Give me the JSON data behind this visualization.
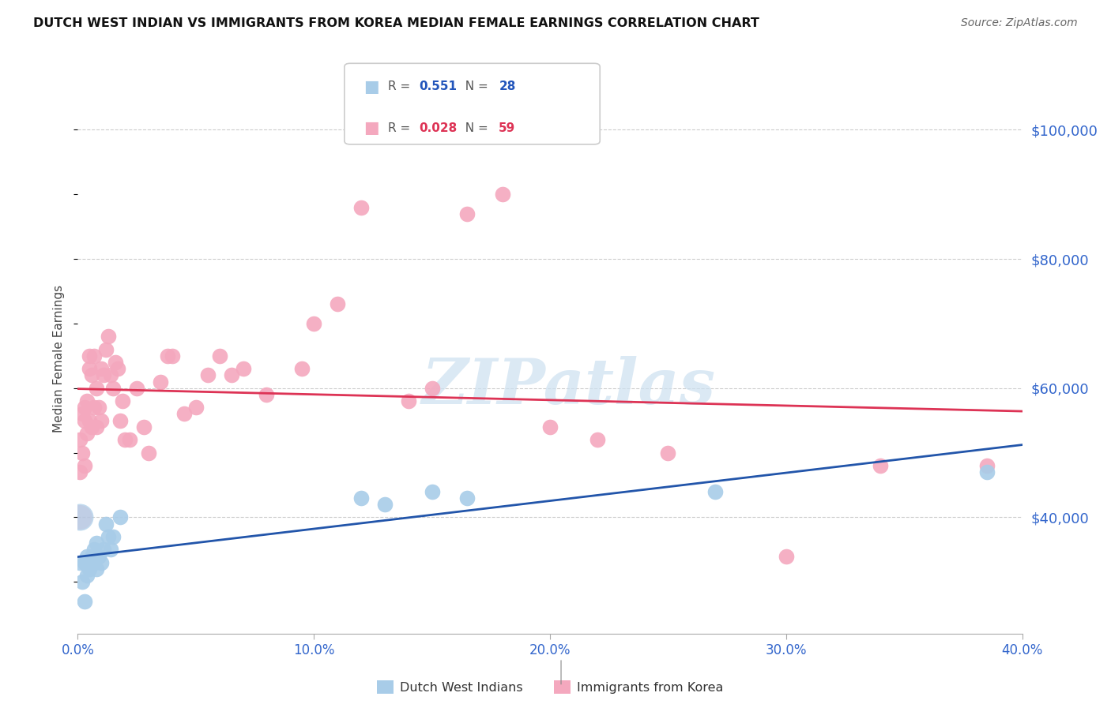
{
  "title": "DUTCH WEST INDIAN VS IMMIGRANTS FROM KOREA MEDIAN FEMALE EARNINGS CORRELATION CHART",
  "source": "Source: ZipAtlas.com",
  "ylabel": "Median Female Earnings",
  "xlim": [
    0.0,
    0.4
  ],
  "ylim": [
    22000,
    107000
  ],
  "yticks": [
    40000,
    60000,
    80000,
    100000
  ],
  "ytick_labels": [
    "$40,000",
    "$60,000",
    "$80,000",
    "$100,000"
  ],
  "xticks": [
    0.0,
    0.1,
    0.2,
    0.3,
    0.4
  ],
  "xtick_labels": [
    "0.0%",
    "10.0%",
    "20.0%",
    "30.0%",
    "40.0%"
  ],
  "blue_R": 0.551,
  "blue_N": 28,
  "pink_R": 0.028,
  "pink_N": 59,
  "blue_color": "#a8cce8",
  "pink_color": "#f4a8be",
  "blue_line_color": "#2255aa",
  "pink_line_color": "#dd3355",
  "watermark_color": "#cce0f0",
  "blue_scatter_x": [
    0.001,
    0.002,
    0.003,
    0.003,
    0.004,
    0.004,
    0.005,
    0.005,
    0.006,
    0.006,
    0.007,
    0.007,
    0.008,
    0.008,
    0.009,
    0.01,
    0.011,
    0.012,
    0.013,
    0.014,
    0.015,
    0.018,
    0.12,
    0.13,
    0.15,
    0.165,
    0.27,
    0.385
  ],
  "blue_scatter_y": [
    33000,
    30000,
    27000,
    33000,
    31000,
    34000,
    32000,
    33000,
    34000,
    33000,
    33000,
    35000,
    32000,
    36000,
    34000,
    33000,
    35000,
    39000,
    37000,
    35000,
    37000,
    40000,
    43000,
    42000,
    44000,
    43000,
    44000,
    47000
  ],
  "pink_scatter_x": [
    0.001,
    0.001,
    0.002,
    0.002,
    0.003,
    0.003,
    0.003,
    0.004,
    0.004,
    0.005,
    0.005,
    0.005,
    0.006,
    0.006,
    0.007,
    0.007,
    0.008,
    0.008,
    0.009,
    0.01,
    0.01,
    0.011,
    0.012,
    0.013,
    0.014,
    0.015,
    0.016,
    0.017,
    0.018,
    0.019,
    0.02,
    0.022,
    0.025,
    0.028,
    0.03,
    0.035,
    0.038,
    0.04,
    0.045,
    0.05,
    0.055,
    0.06,
    0.065,
    0.07,
    0.08,
    0.095,
    0.1,
    0.11,
    0.12,
    0.14,
    0.15,
    0.165,
    0.18,
    0.2,
    0.22,
    0.25,
    0.3,
    0.34,
    0.385
  ],
  "pink_scatter_y": [
    47000,
    52000,
    50000,
    56000,
    55000,
    57000,
    48000,
    53000,
    58000,
    55000,
    65000,
    63000,
    62000,
    54000,
    65000,
    57000,
    60000,
    54000,
    57000,
    55000,
    63000,
    62000,
    66000,
    68000,
    62000,
    60000,
    64000,
    63000,
    55000,
    58000,
    52000,
    52000,
    60000,
    54000,
    50000,
    61000,
    65000,
    65000,
    56000,
    57000,
    62000,
    65000,
    62000,
    63000,
    59000,
    63000,
    70000,
    73000,
    88000,
    58000,
    60000,
    87000,
    90000,
    54000,
    52000,
    50000,
    34000,
    48000,
    48000
  ]
}
